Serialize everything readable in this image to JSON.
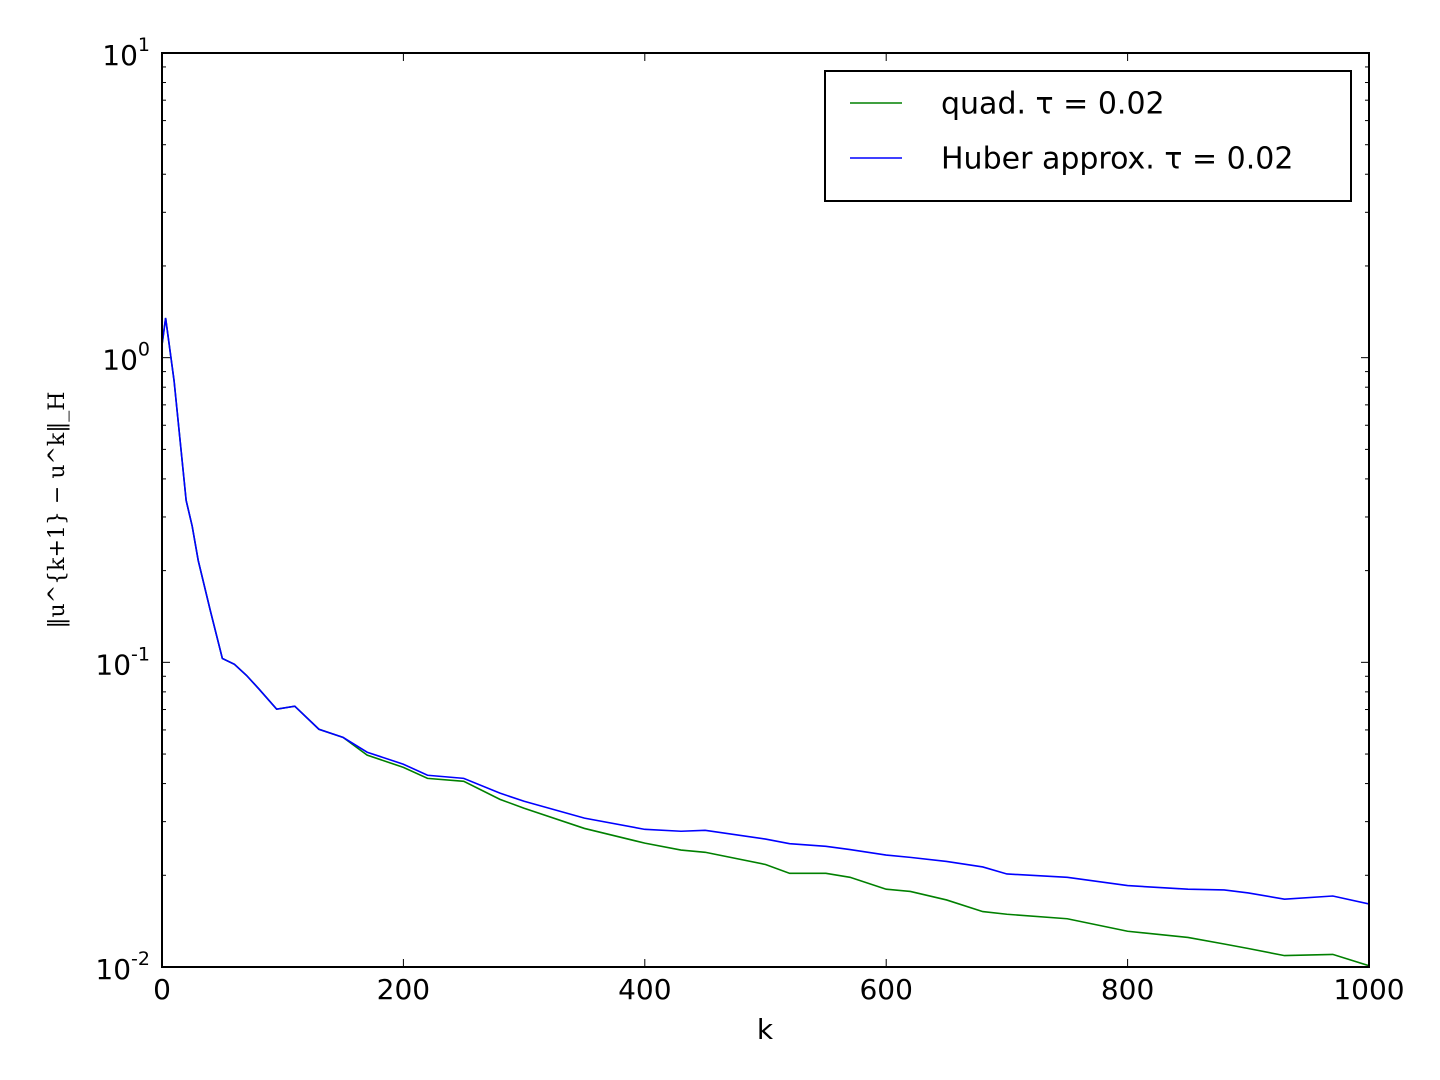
{
  "chart_data": {
    "type": "line",
    "xlabel": "k",
    "ylabel": "‖u^{k+1} − u^k‖_H",
    "log_y": true,
    "legend": "upper right",
    "x": [
      0,
      3,
      10,
      20,
      25,
      30,
      40,
      50,
      60,
      70,
      80,
      95,
      110,
      130,
      150,
      170,
      200,
      220,
      250,
      280,
      300,
      350,
      400,
      430,
      450,
      500,
      520,
      550,
      570,
      600,
      620,
      650,
      680,
      700,
      750,
      800,
      850,
      880,
      900,
      930,
      970,
      1000
    ],
    "series": [
      {
        "name": "quad. τ = 0.02",
        "color": "#008000",
        "values": [
          1.1,
          1.35,
          0.84,
          0.34,
          0.28,
          0.216,
          0.148,
          0.103,
          0.0985,
          0.0906,
          0.082,
          0.0702,
          0.0718,
          0.0603,
          0.0567,
          0.0496,
          0.0452,
          0.0416,
          0.0407,
          0.0355,
          0.0332,
          0.0285,
          0.0255,
          0.0242,
          0.0238,
          0.0217,
          0.0203,
          0.0203,
          0.0197,
          0.018,
          0.0177,
          0.0166,
          0.0152,
          0.0149,
          0.0144,
          0.0131,
          0.0125,
          0.0119,
          0.0115,
          0.0109,
          0.011,
          0.0101
        ]
      },
      {
        "name": "Huber approx. τ = 0.02",
        "color": "#0000ff",
        "values": [
          1.1,
          1.35,
          0.84,
          0.34,
          0.28,
          0.216,
          0.148,
          0.103,
          0.0985,
          0.0906,
          0.082,
          0.0702,
          0.0718,
          0.0603,
          0.0567,
          0.0507,
          0.0463,
          0.0426,
          0.0416,
          0.0372,
          0.035,
          0.0308,
          0.0283,
          0.0279,
          0.0281,
          0.0263,
          0.0254,
          0.0249,
          0.0243,
          0.0233,
          0.0229,
          0.0222,
          0.0213,
          0.0202,
          0.0197,
          0.0185,
          0.018,
          0.0179,
          0.0175,
          0.0167,
          0.0171,
          0.0161
        ]
      }
    ],
    "xlim": [
      0,
      1000
    ],
    "xticks": [
      0,
      200,
      400,
      600,
      800,
      1000
    ],
    "ylim": [
      0.01,
      10
    ],
    "yticks": [
      {
        "value": 0.01,
        "label": "10^-2"
      },
      {
        "value": 0.1,
        "label": "10^-1"
      },
      {
        "value": 1,
        "label": "10^0"
      },
      {
        "value": 10,
        "label": "10^1"
      }
    ]
  }
}
